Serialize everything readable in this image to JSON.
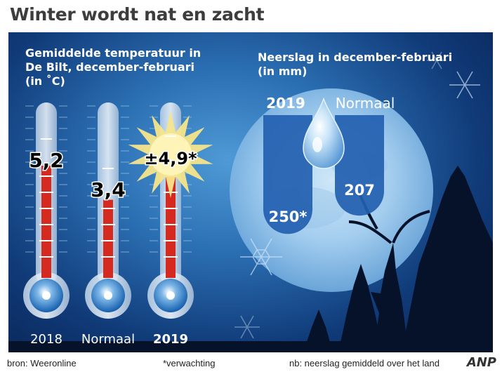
{
  "title": "Winter wordt nat en zacht",
  "temperature": {
    "heading": [
      "Gemiddelde temperatuur in",
      "De Bilt, december-februari",
      "(in ˚C)"
    ]
  },
  "precipitation": {
    "heading": [
      "Neerslag in december-februari",
      "(in mm)"
    ]
  },
  "chart_data": [
    {
      "type": "bar",
      "title": "Gemiddelde temperatuur in De Bilt, december-februari (in ˚C)",
      "categories": [
        "2018",
        "Normaal",
        "2019"
      ],
      "values": [
        5.2,
        3.4,
        4.9
      ],
      "value_labels": [
        "5,2",
        "3,4",
        "±4,9*"
      ],
      "ylim": [
        0,
        8
      ],
      "style": "thermometer"
    },
    {
      "type": "bar",
      "title": "Neerslag in december-februari (in mm)",
      "categories": [
        "2019",
        "Normaal"
      ],
      "values": [
        250,
        207
      ],
      "value_labels": [
        "250*",
        "207"
      ],
      "ylim": [
        0,
        300
      ],
      "style": "raindrop-columns"
    }
  ],
  "footer": {
    "source": "bron: Weeronline",
    "note": "*verwachting",
    "nb": "nb: neerslag gemiddeld over het land",
    "logo": "ANP"
  },
  "colors": {
    "thermo_fill": "#d42a20",
    "bulb": "#1a74c8",
    "sun": "#f6e58a",
    "precip_column": "#2360b0"
  }
}
